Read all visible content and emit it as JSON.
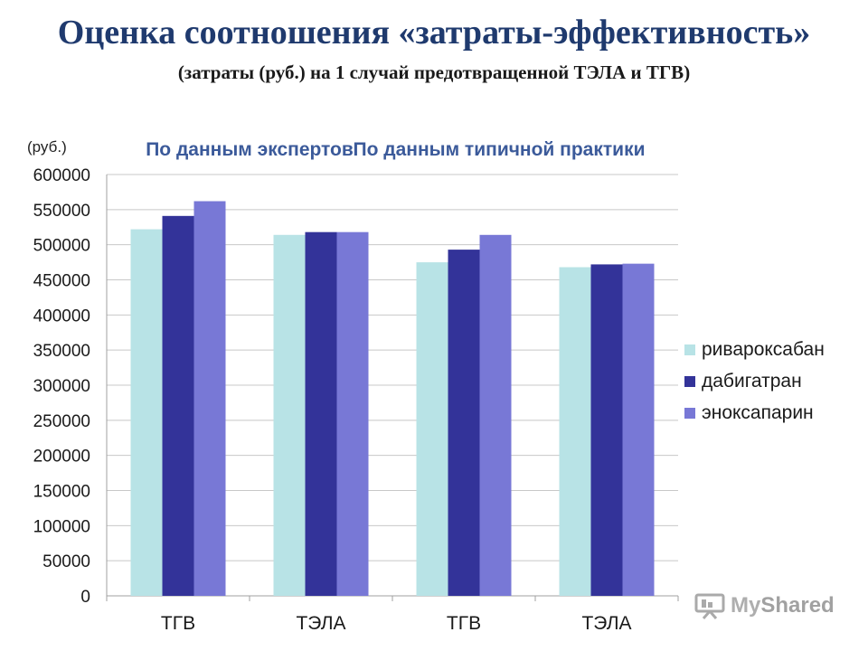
{
  "header": {
    "title": "Оценка соотношения «затраты-эффективность»",
    "subtitle": "(затраты (руб.) на 1 случай предотвращенной ТЭЛА и ТГВ)"
  },
  "chart_data": {
    "type": "bar",
    "unit_label": "(руб.)",
    "groups": [
      "По данным экспертов",
      "По данным типичной практики"
    ],
    "categories": [
      "ТГВ",
      "ТЭЛА",
      "ТГВ",
      "ТЭЛА"
    ],
    "series": [
      {
        "name": "ривароксабан",
        "color": "#b8e3e6",
        "values": [
          522000,
          514000,
          475000,
          468000
        ]
      },
      {
        "name": "дабигатран",
        "color": "#333399",
        "values": [
          541000,
          518000,
          493000,
          472000
        ]
      },
      {
        "name": "эноксапарин",
        "color": "#7878d6",
        "values": [
          562000,
          518000,
          514000,
          473000
        ]
      }
    ],
    "ylim": [
      0,
      600000
    ],
    "yticks": [
      "0",
      "50000",
      "100000",
      "150000",
      "200000",
      "250000",
      "300000",
      "350000",
      "400000",
      "450000",
      "500000",
      "550000",
      "600000"
    ],
    "grid": true,
    "legend_position": "right"
  },
  "watermark": {
    "brand_my": "My",
    "brand_shared": "Shared"
  }
}
